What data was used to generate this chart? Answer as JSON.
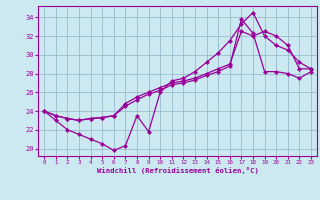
{
  "xlabel": "Windchill (Refroidissement éolien,°C)",
  "bg_color": "#cce8f0",
  "line_color": "#990099",
  "grid_color": "#99bbcc",
  "x_ticks": [
    0,
    1,
    2,
    3,
    4,
    5,
    6,
    7,
    8,
    9,
    10,
    11,
    12,
    13,
    14,
    15,
    16,
    17,
    18,
    19,
    20,
    21,
    22,
    23
  ],
  "y_ticks": [
    20,
    22,
    24,
    26,
    28,
    30,
    32,
    34
  ],
  "xlim": [
    -0.5,
    23.5
  ],
  "ylim": [
    19.2,
    35.2
  ],
  "line1_x": [
    0,
    1,
    2,
    3,
    4,
    5,
    6,
    7,
    8,
    9,
    10,
    11,
    12,
    13,
    14,
    15,
    16,
    17,
    18,
    19,
    20,
    21,
    22,
    23
  ],
  "line1_y": [
    24,
    23,
    22,
    21.5,
    21,
    20.5,
    19.8,
    20.3,
    23.5,
    21.8,
    26,
    27.2,
    27.5,
    28.2,
    29.2,
    30.2,
    31.5,
    33.3,
    34.5,
    32,
    31,
    30.5,
    29.2,
    28.5
  ],
  "line2_x": [
    0,
    1,
    2,
    3,
    4,
    5,
    6,
    7,
    8,
    9,
    10,
    11,
    12,
    13,
    14,
    15,
    16,
    17,
    18,
    19,
    20,
    21,
    22,
    23
  ],
  "line2_y": [
    24,
    23.5,
    23.2,
    23.0,
    23.2,
    23.3,
    23.5,
    24.8,
    25.5,
    26.0,
    26.5,
    27.0,
    27.2,
    27.5,
    28.0,
    28.5,
    29.0,
    32.5,
    32.0,
    32.5,
    32.0,
    31.0,
    28.5,
    28.5
  ],
  "line3_x": [
    0,
    1,
    2,
    3,
    4,
    5,
    6,
    7,
    8,
    9,
    10,
    11,
    12,
    13,
    14,
    15,
    16,
    17,
    18,
    19,
    20,
    21,
    22,
    23
  ],
  "line3_y": [
    24,
    23.5,
    23.2,
    23.0,
    23.2,
    23.3,
    23.5,
    24.5,
    25.2,
    25.8,
    26.2,
    26.8,
    27.0,
    27.3,
    27.8,
    28.2,
    28.8,
    33.8,
    32.3,
    28.2,
    28.2,
    28.0,
    27.5,
    28.2
  ]
}
